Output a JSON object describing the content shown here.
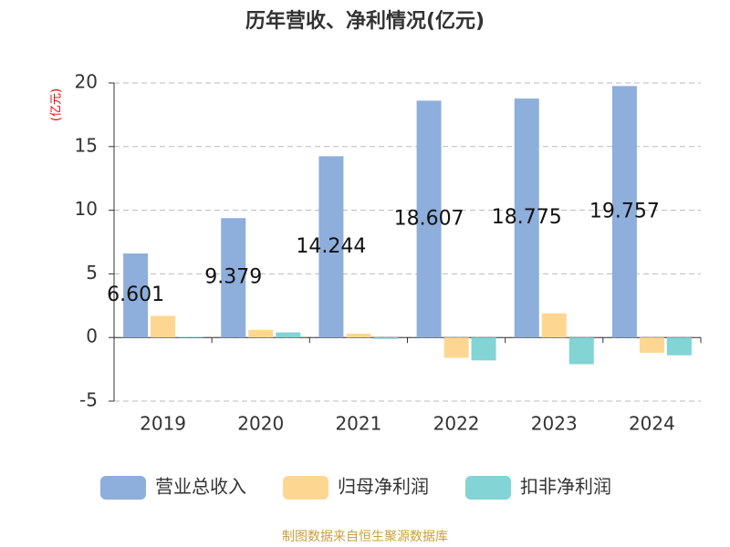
{
  "chart_data": {
    "type": "bar",
    "title": "历年营收、净利情况(亿元)",
    "ylabel": "(亿元)",
    "categories": [
      "2019",
      "2020",
      "2021",
      "2022",
      "2023",
      "2024"
    ],
    "series": [
      {
        "name": "营业总收入",
        "color": "#8eaedb",
        "values": [
          6.601,
          9.379,
          14.244,
          18.607,
          18.775,
          19.757
        ],
        "show_labels": true
      },
      {
        "name": "归母净利润",
        "color": "#fdd792",
        "values": [
          1.7,
          0.6,
          0.3,
          -1.6,
          1.9,
          -1.2
        ]
      },
      {
        "name": "扣非净利润",
        "color": "#82d4d5",
        "values": [
          0.05,
          0.4,
          -0.1,
          -1.8,
          -2.1,
          -1.4
        ]
      }
    ],
    "ylim": [
      -5,
      20
    ],
    "yticks": [
      -5,
      0,
      5,
      10,
      15,
      20
    ],
    "grid": true,
    "source": "制图数据来自恒生聚源数据库"
  }
}
